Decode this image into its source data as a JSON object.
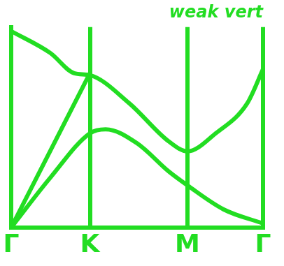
{
  "chart_data": {
    "type": "line",
    "title": "weak vert",
    "xlim": [
      0,
      3.2
    ],
    "xticks": [
      {
        "value": 0,
        "label": "Γ"
      },
      {
        "value": 1,
        "label": "K"
      },
      {
        "value": 2.24,
        "label": "M"
      },
      {
        "value": 3.2,
        "label": "Γ"
      }
    ],
    "ylim": [
      0,
      1
    ],
    "tick_labels": "x",
    "grid": true,
    "color": "#22dd22",
    "marker": "none",
    "series": [
      {
        "x": [
          0,
          0.5,
          0.8,
          1.0,
          1.5,
          2.0,
          2.24,
          2.6,
          3.0,
          3.2
        ],
        "values": [
          0.98,
          0.87,
          0.77,
          0.76,
          0.62,
          0.43,
          0.38,
          0.47,
          0.62,
          0.79
        ]
      },
      {
        "x": [
          0,
          0.5,
          1.0,
          1.2,
          1.6,
          2.0,
          2.24,
          2.7,
          3.2
        ],
        "values": [
          0,
          0.25,
          0.47,
          0.49,
          0.42,
          0.28,
          0.21,
          0.09,
          0.02
        ]
      },
      {
        "x": [
          0,
          1.0
        ],
        "values": [
          0,
          0.77
        ]
      }
    ]
  }
}
